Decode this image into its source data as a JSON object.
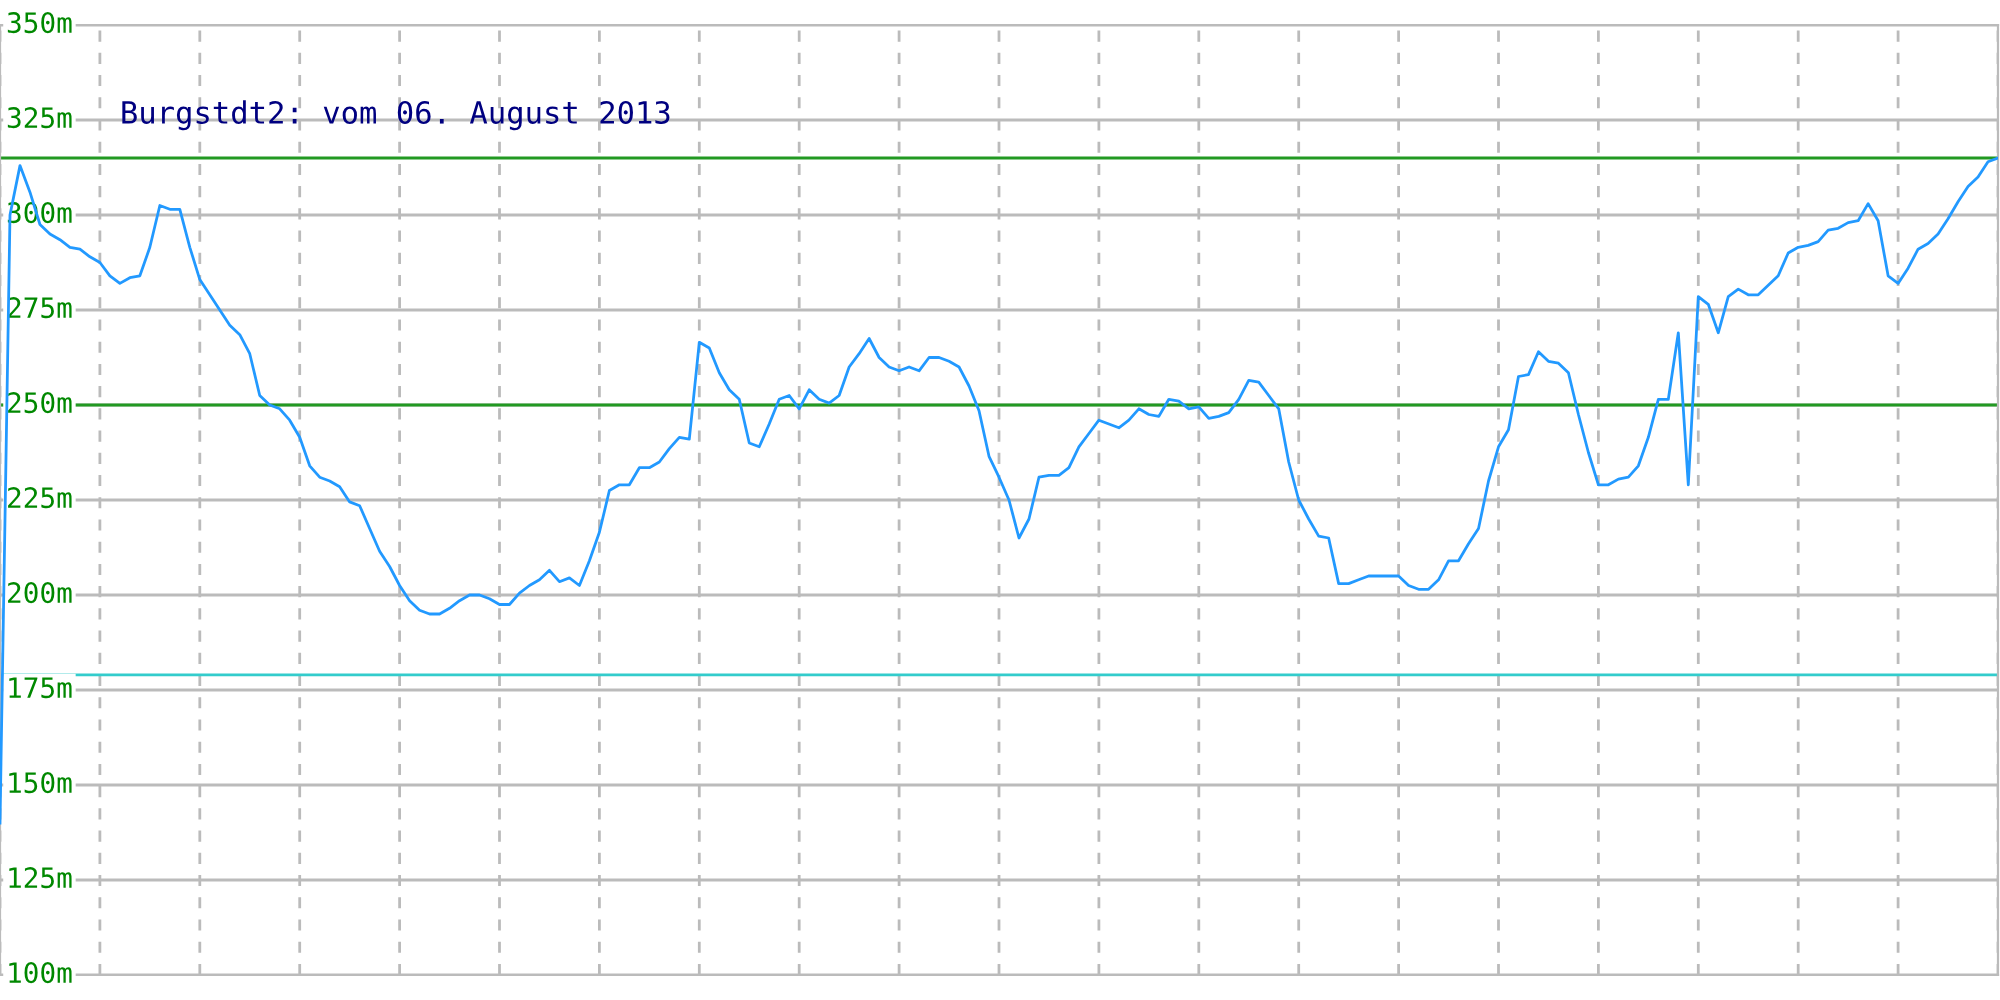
{
  "chart_data": {
    "type": "line",
    "title": "Burgstdt2: vom 06. August 2013",
    "categories": [
      null,
      null,
      null,
      null,
      null,
      null,
      null,
      null,
      null,
      null,
      null,
      null,
      null,
      null,
      null,
      null,
      null,
      null,
      null,
      null,
      null,
      null,
      null,
      null,
      null,
      null,
      null,
      null,
      null,
      null,
      null,
      null,
      null,
      null,
      null,
      null,
      null,
      null,
      null,
      null,
      null,
      null,
      null,
      null,
      null,
      null,
      null,
      null,
      null,
      null,
      null,
      null,
      null,
      null,
      null,
      null,
      null,
      null,
      null,
      null,
      null,
      null,
      null,
      null,
      null,
      null,
      null,
      null,
      null,
      null,
      null,
      null,
      null,
      null,
      null,
      null,
      null,
      null,
      null,
      null,
      null,
      null,
      null,
      null,
      null,
      null,
      null,
      null,
      null,
      null,
      null,
      null,
      null,
      null,
      null,
      null,
      null,
      null,
      null,
      null,
      null,
      null,
      null,
      null,
      null,
      null,
      null,
      null,
      null,
      null,
      null,
      null,
      null,
      null,
      null,
      null,
      null,
      null,
      null,
      null,
      null,
      null,
      null,
      null,
      null,
      null,
      null,
      null,
      null,
      null,
      null,
      null,
      null,
      null,
      null,
      null,
      null,
      null,
      null,
      null,
      null,
      null,
      null,
      null,
      null,
      null,
      null,
      null,
      null,
      null,
      null,
      null,
      null,
      null,
      null,
      null,
      null,
      null,
      null,
      null,
      null,
      null,
      null,
      null,
      null,
      null,
      null,
      null,
      null,
      null,
      null,
      null,
      null,
      null,
      null,
      null,
      null,
      null,
      null,
      null,
      null,
      null,
      null,
      null,
      null,
      null,
      null,
      null,
      null,
      null,
      null,
      null,
      null,
      null,
      null,
      null,
      null,
      null,
      null,
      null,
      null
    ],
    "series": [
      {
        "color": "#2299ff",
        "values": [
          140,
          300,
          313,
          306,
          297.5,
          295,
          293.5,
          291.5,
          291,
          289,
          287.5,
          284,
          282,
          283.5,
          284,
          291.5,
          302.5,
          301.5,
          301.5,
          291.5,
          283,
          279,
          275,
          271,
          268.5,
          263.5,
          252.5,
          250,
          249,
          246,
          241.5,
          234,
          231,
          230,
          228.5,
          224.5,
          223.5,
          217.5,
          211.5,
          207.5,
          202.5,
          198.5,
          196,
          195,
          195,
          196.5,
          198.5,
          200,
          200,
          199,
          197.5,
          197.5,
          200.5,
          202.5,
          204,
          206.5,
          203.5,
          204.5,
          202.5,
          209,
          216.5,
          227.5,
          229,
          229,
          233.5,
          233.5,
          235,
          238.5,
          241.5,
          241,
          266.5,
          265,
          258.5,
          254,
          251.5,
          240,
          239,
          245,
          251.5,
          252.5,
          249,
          254,
          251.5,
          250.5,
          252.5,
          260,
          263.5,
          267.5,
          262.5,
          260,
          259,
          260,
          259,
          262.5,
          262.5,
          261.5,
          260,
          255,
          248.5,
          236.5,
          231,
          225,
          215,
          220,
          231,
          231.5,
          231.5,
          233.5,
          239,
          242.5,
          246,
          245,
          244,
          246,
          249,
          247.5,
          247,
          251.5,
          251,
          249,
          249.5,
          246.5,
          247,
          248,
          251.5,
          256.5,
          256,
          252.5,
          249,
          235,
          225,
          220,
          215.5,
          215,
          203,
          203,
          204,
          205,
          205,
          205,
          205,
          202.5,
          201.5,
          201.5,
          204,
          209,
          209,
          213.5,
          217.5,
          230,
          239,
          243.5,
          257.5,
          258,
          264,
          261.5,
          261,
          258.5,
          247.5,
          237.5,
          229,
          229,
          230.5,
          231,
          234,
          241.5,
          251.5,
          251.5,
          269,
          229,
          278.5,
          276.5,
          269,
          278.5,
          280.5,
          279,
          279,
          281.5,
          284,
          290,
          291.5,
          292,
          293,
          296,
          296.5,
          298,
          298.5,
          303,
          298.5,
          284,
          282,
          286,
          291,
          292.5,
          295,
          299,
          303.5,
          307.5,
          310,
          314,
          315
        ]
      }
    ],
    "ylim": [
      100,
      350
    ],
    "yticks": [
      {
        "value": 100,
        "label": "100m"
      },
      {
        "value": 125,
        "label": "125m"
      },
      {
        "value": 150,
        "label": "150m"
      },
      {
        "value": 175,
        "label": "175m"
      },
      {
        "value": 200,
        "label": "200m"
      },
      {
        "value": 225,
        "label": "225m"
      },
      {
        "value": 250,
        "label": "250m"
      },
      {
        "value": 275,
        "label": "275m"
      },
      {
        "value": 300,
        "label": "300m"
      },
      {
        "value": 325,
        "label": "325m"
      },
      {
        "value": 350,
        "label": "350m"
      }
    ],
    "ref_lines": [
      {
        "axis": "y",
        "value": 315,
        "color": "#229922"
      },
      {
        "axis": "y",
        "value": 250,
        "color": "#229922"
      },
      {
        "axis": "y",
        "value": 179,
        "color": "#33cccc"
      }
    ],
    "grid": true,
    "tick_labels": "y"
  }
}
